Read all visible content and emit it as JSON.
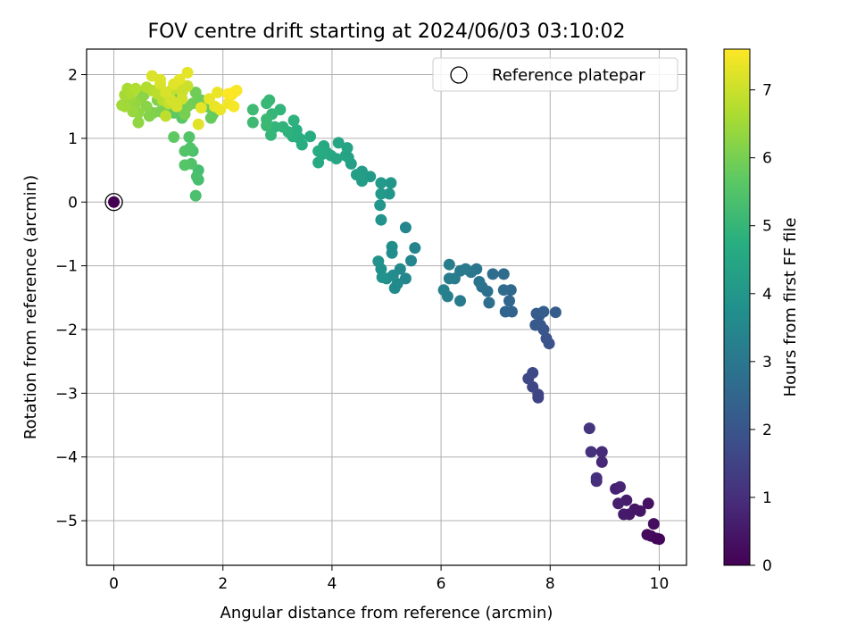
{
  "chart_data": {
    "type": "scatter",
    "title": "FOV centre drift starting at 2024/06/03 03:10:02",
    "xlabel": "Angular distance from reference (arcmin)",
    "ylabel": "Rotation from reference (arcmin)",
    "xlim": [
      -0.5,
      10.5
    ],
    "ylim": [
      -5.7,
      2.4
    ],
    "xticks": [
      0,
      2,
      4,
      6,
      8,
      10
    ],
    "yticks": [
      -5,
      -4,
      -3,
      -2,
      -1,
      0,
      1,
      2
    ],
    "grid": true,
    "legend": {
      "position": "top-right",
      "entries": [
        "Reference platepar"
      ]
    },
    "colorbar": {
      "label": "Hours from first FF file",
      "colormap": "viridis",
      "range": [
        0,
        7.6
      ],
      "ticks": [
        0,
        1,
        2,
        3,
        4,
        5,
        6,
        7
      ]
    },
    "reference_point": {
      "x": 0,
      "y": 0,
      "c": 0
    },
    "points": [
      {
        "x": 9.95,
        "y": -5.28,
        "c": 0.1
      },
      {
        "x": 10.0,
        "y": -5.29,
        "c": 0.1
      },
      {
        "x": 9.85,
        "y": -5.24,
        "c": 0.15
      },
      {
        "x": 9.78,
        "y": -5.22,
        "c": 0.2
      },
      {
        "x": 9.9,
        "y": -5.05,
        "c": 0.25
      },
      {
        "x": 9.8,
        "y": -4.73,
        "c": 0.35
      },
      {
        "x": 9.65,
        "y": -4.85,
        "c": 0.4
      },
      {
        "x": 9.55,
        "y": -4.82,
        "c": 0.45
      },
      {
        "x": 9.45,
        "y": -4.9,
        "c": 0.5
      },
      {
        "x": 9.35,
        "y": -4.9,
        "c": 0.55
      },
      {
        "x": 9.4,
        "y": -4.68,
        "c": 0.6
      },
      {
        "x": 9.25,
        "y": -4.73,
        "c": 0.65
      },
      {
        "x": 9.2,
        "y": -4.5,
        "c": 0.7
      },
      {
        "x": 9.28,
        "y": -4.47,
        "c": 0.75
      },
      {
        "x": 8.95,
        "y": -4.08,
        "c": 0.85
      },
      {
        "x": 8.95,
        "y": -3.92,
        "c": 0.9
      },
      {
        "x": 8.85,
        "y": -4.38,
        "c": 0.95
      },
      {
        "x": 8.85,
        "y": -4.33,
        "c": 1.0
      },
      {
        "x": 8.75,
        "y": -3.92,
        "c": 1.05
      },
      {
        "x": 8.72,
        "y": -3.55,
        "c": 1.15
      },
      {
        "x": 7.78,
        "y": -3.07,
        "c": 1.5
      },
      {
        "x": 7.78,
        "y": -3.02,
        "c": 1.55
      },
      {
        "x": 7.68,
        "y": -2.9,
        "c": 1.6
      },
      {
        "x": 7.6,
        "y": -2.77,
        "c": 1.65
      },
      {
        "x": 7.68,
        "y": -2.68,
        "c": 1.7
      },
      {
        "x": 7.98,
        "y": -2.22,
        "c": 1.9
      },
      {
        "x": 7.93,
        "y": -2.14,
        "c": 1.95
      },
      {
        "x": 7.88,
        "y": -2.0,
        "c": 2.0
      },
      {
        "x": 7.82,
        "y": -1.93,
        "c": 2.05
      },
      {
        "x": 7.73,
        "y": -1.93,
        "c": 2.1
      },
      {
        "x": 7.8,
        "y": -1.78,
        "c": 2.15
      },
      {
        "x": 7.75,
        "y": -1.75,
        "c": 2.2
      },
      {
        "x": 7.88,
        "y": -1.72,
        "c": 2.25
      },
      {
        "x": 8.1,
        "y": -1.73,
        "c": 2.2
      },
      {
        "x": 7.3,
        "y": -1.72,
        "c": 2.4
      },
      {
        "x": 7.18,
        "y": -1.72,
        "c": 2.45
      },
      {
        "x": 7.25,
        "y": -1.55,
        "c": 2.5
      },
      {
        "x": 7.28,
        "y": -1.38,
        "c": 2.55
      },
      {
        "x": 7.15,
        "y": -1.38,
        "c": 2.6
      },
      {
        "x": 7.15,
        "y": -1.13,
        "c": 2.65
      },
      {
        "x": 6.95,
        "y": -1.13,
        "c": 2.7
      },
      {
        "x": 6.88,
        "y": -1.58,
        "c": 2.75
      },
      {
        "x": 6.85,
        "y": -1.4,
        "c": 2.8
      },
      {
        "x": 6.75,
        "y": -1.33,
        "c": 2.85
      },
      {
        "x": 6.7,
        "y": -1.25,
        "c": 2.9
      },
      {
        "x": 6.65,
        "y": -1.05,
        "c": 2.95
      },
      {
        "x": 6.55,
        "y": -1.1,
        "c": 3.0
      },
      {
        "x": 6.45,
        "y": -1.05,
        "c": 3.05
      },
      {
        "x": 6.35,
        "y": -1.08,
        "c": 3.1
      },
      {
        "x": 6.35,
        "y": -1.55,
        "c": 3.1
      },
      {
        "x": 6.25,
        "y": -1.2,
        "c": 3.15
      },
      {
        "x": 6.15,
        "y": -1.2,
        "c": 3.2
      },
      {
        "x": 6.15,
        "y": -0.98,
        "c": 3.2
      },
      {
        "x": 6.12,
        "y": -1.48,
        "c": 3.25
      },
      {
        "x": 6.05,
        "y": -1.38,
        "c": 3.3
      },
      {
        "x": 5.52,
        "y": -0.72,
        "c": 3.4
      },
      {
        "x": 5.45,
        "y": -0.92,
        "c": 3.45
      },
      {
        "x": 5.35,
        "y": -0.4,
        "c": 3.45
      },
      {
        "x": 5.35,
        "y": -1.2,
        "c": 3.5
      },
      {
        "x": 5.25,
        "y": -1.05,
        "c": 3.55
      },
      {
        "x": 5.2,
        "y": -1.28,
        "c": 3.6
      },
      {
        "x": 5.15,
        "y": -1.35,
        "c": 3.6
      },
      {
        "x": 5.12,
        "y": -1.15,
        "c": 3.65
      },
      {
        "x": 5.1,
        "y": -0.8,
        "c": 3.65
      },
      {
        "x": 5.1,
        "y": -0.7,
        "c": 3.7
      },
      {
        "x": 5.0,
        "y": -1.2,
        "c": 3.75
      },
      {
        "x": 4.9,
        "y": -1.05,
        "c": 3.8
      },
      {
        "x": 4.85,
        "y": -0.93,
        "c": 3.85
      },
      {
        "x": 4.92,
        "y": -1.18,
        "c": 3.85
      },
      {
        "x": 4.9,
        "y": -0.28,
        "c": 3.9
      },
      {
        "x": 4.88,
        "y": -0.05,
        "c": 3.95
      },
      {
        "x": 5.05,
        "y": 0.13,
        "c": 3.95
      },
      {
        "x": 5.08,
        "y": 0.3,
        "c": 4.0
      },
      {
        "x": 4.9,
        "y": 0.3,
        "c": 4.05
      },
      {
        "x": 4.9,
        "y": 0.13,
        "c": 4.05
      },
      {
        "x": 4.7,
        "y": 0.4,
        "c": 4.1
      },
      {
        "x": 4.55,
        "y": 0.48,
        "c": 4.15
      },
      {
        "x": 4.55,
        "y": 0.33,
        "c": 4.2
      },
      {
        "x": 4.45,
        "y": 0.43,
        "c": 4.25
      },
      {
        "x": 4.35,
        "y": 0.6,
        "c": 4.3
      },
      {
        "x": 4.3,
        "y": 0.7,
        "c": 4.35
      },
      {
        "x": 4.25,
        "y": 0.73,
        "c": 4.4
      },
      {
        "x": 4.28,
        "y": 0.85,
        "c": 4.4
      },
      {
        "x": 4.12,
        "y": 0.93,
        "c": 4.45
      },
      {
        "x": 4.08,
        "y": 0.68,
        "c": 4.5
      },
      {
        "x": 3.98,
        "y": 0.73,
        "c": 4.5
      },
      {
        "x": 3.9,
        "y": 0.78,
        "c": 4.55
      },
      {
        "x": 3.85,
        "y": 0.88,
        "c": 4.55
      },
      {
        "x": 3.82,
        "y": 0.75,
        "c": 4.6
      },
      {
        "x": 3.75,
        "y": 0.62,
        "c": 4.6
      },
      {
        "x": 3.75,
        "y": 0.8,
        "c": 4.65
      },
      {
        "x": 3.6,
        "y": 1.03,
        "c": 4.65
      },
      {
        "x": 3.45,
        "y": 0.9,
        "c": 4.7
      },
      {
        "x": 3.4,
        "y": 1.0,
        "c": 4.75
      },
      {
        "x": 3.35,
        "y": 1.13,
        "c": 4.75
      },
      {
        "x": 3.28,
        "y": 1.03,
        "c": 4.8
      },
      {
        "x": 3.3,
        "y": 1.28,
        "c": 4.85
      },
      {
        "x": 3.2,
        "y": 1.1,
        "c": 4.85
      },
      {
        "x": 3.1,
        "y": 1.18,
        "c": 4.9
      },
      {
        "x": 3.05,
        "y": 1.45,
        "c": 4.95
      },
      {
        "x": 2.95,
        "y": 1.18,
        "c": 4.95
      },
      {
        "x": 2.88,
        "y": 1.05,
        "c": 5.0
      },
      {
        "x": 2.9,
        "y": 1.38,
        "c": 5.0
      },
      {
        "x": 2.85,
        "y": 1.6,
        "c": 5.05
      },
      {
        "x": 2.8,
        "y": 1.55,
        "c": 5.05
      },
      {
        "x": 2.8,
        "y": 1.3,
        "c": 5.1
      },
      {
        "x": 2.8,
        "y": 1.2,
        "c": 5.1
      },
      {
        "x": 2.55,
        "y": 1.45,
        "c": 5.15
      },
      {
        "x": 2.55,
        "y": 1.25,
        "c": 5.15
      },
      {
        "x": 1.55,
        "y": 0.35,
        "c": 5.3
      },
      {
        "x": 1.55,
        "y": 0.5,
        "c": 5.3
      },
      {
        "x": 1.52,
        "y": 0.4,
        "c": 5.35
      },
      {
        "x": 1.5,
        "y": 0.1,
        "c": 5.35
      },
      {
        "x": 1.45,
        "y": 0.8,
        "c": 5.4
      },
      {
        "x": 1.42,
        "y": 0.6,
        "c": 5.45
      },
      {
        "x": 1.4,
        "y": 0.85,
        "c": 5.45
      },
      {
        "x": 1.38,
        "y": 1.02,
        "c": 5.5
      },
      {
        "x": 1.3,
        "y": 0.8,
        "c": 5.5
      },
      {
        "x": 1.3,
        "y": 0.58,
        "c": 5.55
      },
      {
        "x": 1.25,
        "y": 1.32,
        "c": 5.6
      },
      {
        "x": 1.12,
        "y": 1.62,
        "c": 5.65
      },
      {
        "x": 1.1,
        "y": 1.4,
        "c": 5.65
      },
      {
        "x": 1.05,
        "y": 1.68,
        "c": 5.7
      },
      {
        "x": 1.1,
        "y": 1.02,
        "c": 5.7
      },
      {
        "x": 1.82,
        "y": 1.38,
        "c": 5.75
      },
      {
        "x": 1.78,
        "y": 1.32,
        "c": 5.8
      },
      {
        "x": 1.7,
        "y": 1.5,
        "c": 5.8
      },
      {
        "x": 1.6,
        "y": 1.6,
        "c": 5.85
      },
      {
        "x": 1.5,
        "y": 1.72,
        "c": 5.9
      },
      {
        "x": 1.45,
        "y": 1.55,
        "c": 5.9
      },
      {
        "x": 1.35,
        "y": 1.5,
        "c": 5.95
      },
      {
        "x": 1.3,
        "y": 1.38,
        "c": 6.0
      },
      {
        "x": 0.95,
        "y": 1.5,
        "c": 6.0
      },
      {
        "x": 0.85,
        "y": 1.42,
        "c": 6.05
      },
      {
        "x": 0.8,
        "y": 1.6,
        "c": 6.1
      },
      {
        "x": 0.72,
        "y": 1.4,
        "c": 6.1
      },
      {
        "x": 0.65,
        "y": 1.35,
        "c": 6.15
      },
      {
        "x": 0.6,
        "y": 1.5,
        "c": 6.2
      },
      {
        "x": 0.55,
        "y": 1.68,
        "c": 6.2
      },
      {
        "x": 0.5,
        "y": 1.62,
        "c": 6.25
      },
      {
        "x": 0.45,
        "y": 1.25,
        "c": 6.3
      },
      {
        "x": 0.45,
        "y": 1.4,
        "c": 6.3
      },
      {
        "x": 0.4,
        "y": 1.55,
        "c": 6.35
      },
      {
        "x": 0.35,
        "y": 1.42,
        "c": 6.4
      },
      {
        "x": 0.3,
        "y": 1.62,
        "c": 6.4
      },
      {
        "x": 0.25,
        "y": 1.72,
        "c": 6.45
      },
      {
        "x": 0.2,
        "y": 1.5,
        "c": 6.5
      },
      {
        "x": 0.15,
        "y": 1.52,
        "c": 6.5
      },
      {
        "x": 0.2,
        "y": 1.68,
        "c": 6.55
      },
      {
        "x": 0.25,
        "y": 1.78,
        "c": 6.6
      },
      {
        "x": 0.3,
        "y": 1.7,
        "c": 6.6
      },
      {
        "x": 0.35,
        "y": 1.75,
        "c": 6.65
      },
      {
        "x": 0.4,
        "y": 1.78,
        "c": 6.7
      },
      {
        "x": 0.6,
        "y": 1.8,
        "c": 6.7
      },
      {
        "x": 0.7,
        "y": 1.75,
        "c": 6.75
      },
      {
        "x": 0.8,
        "y": 1.7,
        "c": 6.8
      },
      {
        "x": 0.9,
        "y": 1.6,
        "c": 6.8
      },
      {
        "x": 0.95,
        "y": 1.35,
        "c": 6.85
      },
      {
        "x": 1.0,
        "y": 1.55,
        "c": 6.9
      },
      {
        "x": 1.05,
        "y": 1.75,
        "c": 6.9
      },
      {
        "x": 1.15,
        "y": 1.8,
        "c": 6.95
      },
      {
        "x": 1.25,
        "y": 1.72,
        "c": 7.0
      },
      {
        "x": 1.35,
        "y": 1.82,
        "c": 7.0
      },
      {
        "x": 1.25,
        "y": 1.62,
        "c": 7.05
      },
      {
        "x": 1.15,
        "y": 1.5,
        "c": 7.1
      },
      {
        "x": 1.05,
        "y": 1.6,
        "c": 7.1
      },
      {
        "x": 0.95,
        "y": 1.72,
        "c": 7.15
      },
      {
        "x": 0.85,
        "y": 1.85,
        "c": 7.15
      },
      {
        "x": 0.7,
        "y": 1.98,
        "c": 7.2
      },
      {
        "x": 0.85,
        "y": 1.92,
        "c": 7.2
      },
      {
        "x": 1.1,
        "y": 1.85,
        "c": 7.25
      },
      {
        "x": 1.2,
        "y": 1.92,
        "c": 7.3
      },
      {
        "x": 1.35,
        "y": 2.03,
        "c": 7.3
      },
      {
        "x": 1.55,
        "y": 1.22,
        "c": 7.25
      },
      {
        "x": 1.6,
        "y": 1.48,
        "c": 7.3
      },
      {
        "x": 1.75,
        "y": 1.62,
        "c": 7.35
      },
      {
        "x": 1.85,
        "y": 1.5,
        "c": 7.35
      },
      {
        "x": 1.95,
        "y": 1.45,
        "c": 7.4
      },
      {
        "x": 1.9,
        "y": 1.72,
        "c": 7.4
      },
      {
        "x": 2.1,
        "y": 1.55,
        "c": 7.45
      },
      {
        "x": 2.2,
        "y": 1.5,
        "c": 7.5
      },
      {
        "x": 2.15,
        "y": 1.68,
        "c": 7.5
      },
      {
        "x": 2.2,
        "y": 1.72,
        "c": 7.55
      },
      {
        "x": 2.25,
        "y": 1.75,
        "c": 7.55
      },
      {
        "x": 2.1,
        "y": 1.7,
        "c": 7.6
      }
    ]
  }
}
